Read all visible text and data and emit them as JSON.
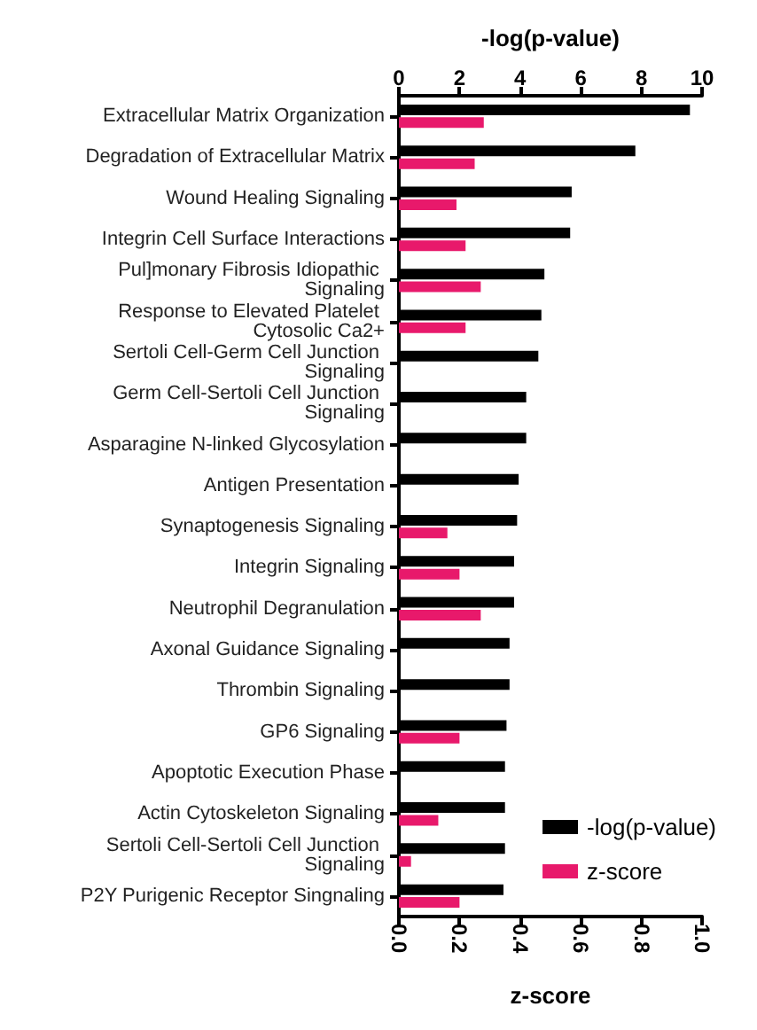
{
  "chart_data": {
    "type": "bar",
    "orientation": "horizontal",
    "categories": [
      "Extracellular Matrix Organization",
      "Degradation of Extracellular Matrix",
      "Wound Healing Signaling",
      "Integrin Cell Surface Interactions",
      "Pul]monary Fibrosis Idiopathic Signaling",
      "Response to Elevated Platelet Cytosolic Ca2+",
      "Sertoli Cell-Germ Cell Junction Signaling",
      "Germ Cell-Sertoli Cell Junction Signaling",
      "Asparagine N-linked Glycosylation",
      "Antigen Presentation",
      "Synaptogenesis Signaling",
      "Integrin Signaling",
      "Neutrophil Degranulation",
      "Axonal Guidance Signaling",
      "Thrombin Signaling",
      "GP6 Signaling",
      "Apoptotic Execution Phase",
      "Actin Cytoskeleton Signaling",
      "Sertoli Cell-Sertoli Cell Junction Signaling",
      "P2Y Purigenic Receptor Singnaling"
    ],
    "series": [
      {
        "name": "-log(p-value)",
        "color": "#000000",
        "axis": "x2",
        "values": [
          9.6,
          7.8,
          5.7,
          5.65,
          4.8,
          4.7,
          4.6,
          4.2,
          4.2,
          3.95,
          3.9,
          3.8,
          3.8,
          3.65,
          3.65,
          3.55,
          3.5,
          3.5,
          3.5,
          3.45
        ]
      },
      {
        "name": "z-score",
        "color": "#e8196b",
        "values": [
          0.28,
          0.25,
          0.19,
          0.22,
          0.27,
          0.22,
          null,
          null,
          null,
          null,
          0.16,
          0.2,
          0.27,
          null,
          null,
          0.2,
          null,
          0.13,
          0.04,
          0.2
        ]
      }
    ],
    "xlabel": "z-score",
    "x2label": "-log(p-value)",
    "xlim": [
      0,
      1
    ],
    "xticks": [
      {
        "value": 0,
        "label": "0.0"
      },
      0.2,
      0.4,
      0.6,
      0.8,
      {
        "value": 1,
        "label": "1.0"
      }
    ],
    "x2lim": [
      0,
      10
    ],
    "x2ticks": [
      0,
      2,
      4,
      6,
      8,
      10
    ],
    "legend": "bottom right",
    "grid": false
  }
}
